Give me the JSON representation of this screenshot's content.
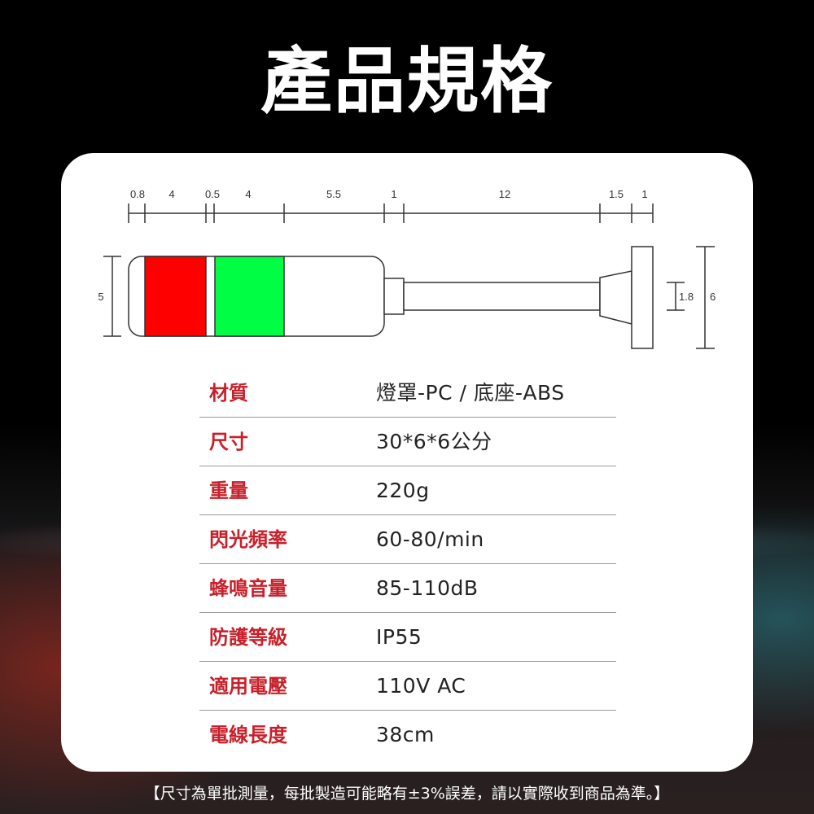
{
  "title": "產品規格",
  "diagram": {
    "top_dimensions": [
      "0.8",
      "4",
      "0.5",
      "4",
      "5.5",
      "1",
      "12",
      "1.5",
      "1"
    ],
    "height_dimension": "5",
    "stem_dimension": "1.8",
    "base_dimension": "6",
    "colors": {
      "red_segment": "#ff0000",
      "green_segment": "#00ff44",
      "line": "#333333"
    }
  },
  "specs": [
    {
      "label": "材質",
      "value": "燈罩-PC / 底座-ABS"
    },
    {
      "label": "尺寸",
      "value": "30*6*6公分"
    },
    {
      "label": "重量",
      "value": "220g"
    },
    {
      "label": "閃光頻率",
      "value": "60-80/min"
    },
    {
      "label": "蜂鳴音量",
      "value": "85-110dB"
    },
    {
      "label": "防護等級",
      "value": "IP55"
    },
    {
      "label": "適用電壓",
      "value": "110V AC"
    },
    {
      "label": "電線長度",
      "value": "38cm"
    }
  ],
  "footer": "【尺寸為單批測量，每批製造可能略有±3%誤差，請以實際收到商品為準。】",
  "accent_color": "#c8202a"
}
